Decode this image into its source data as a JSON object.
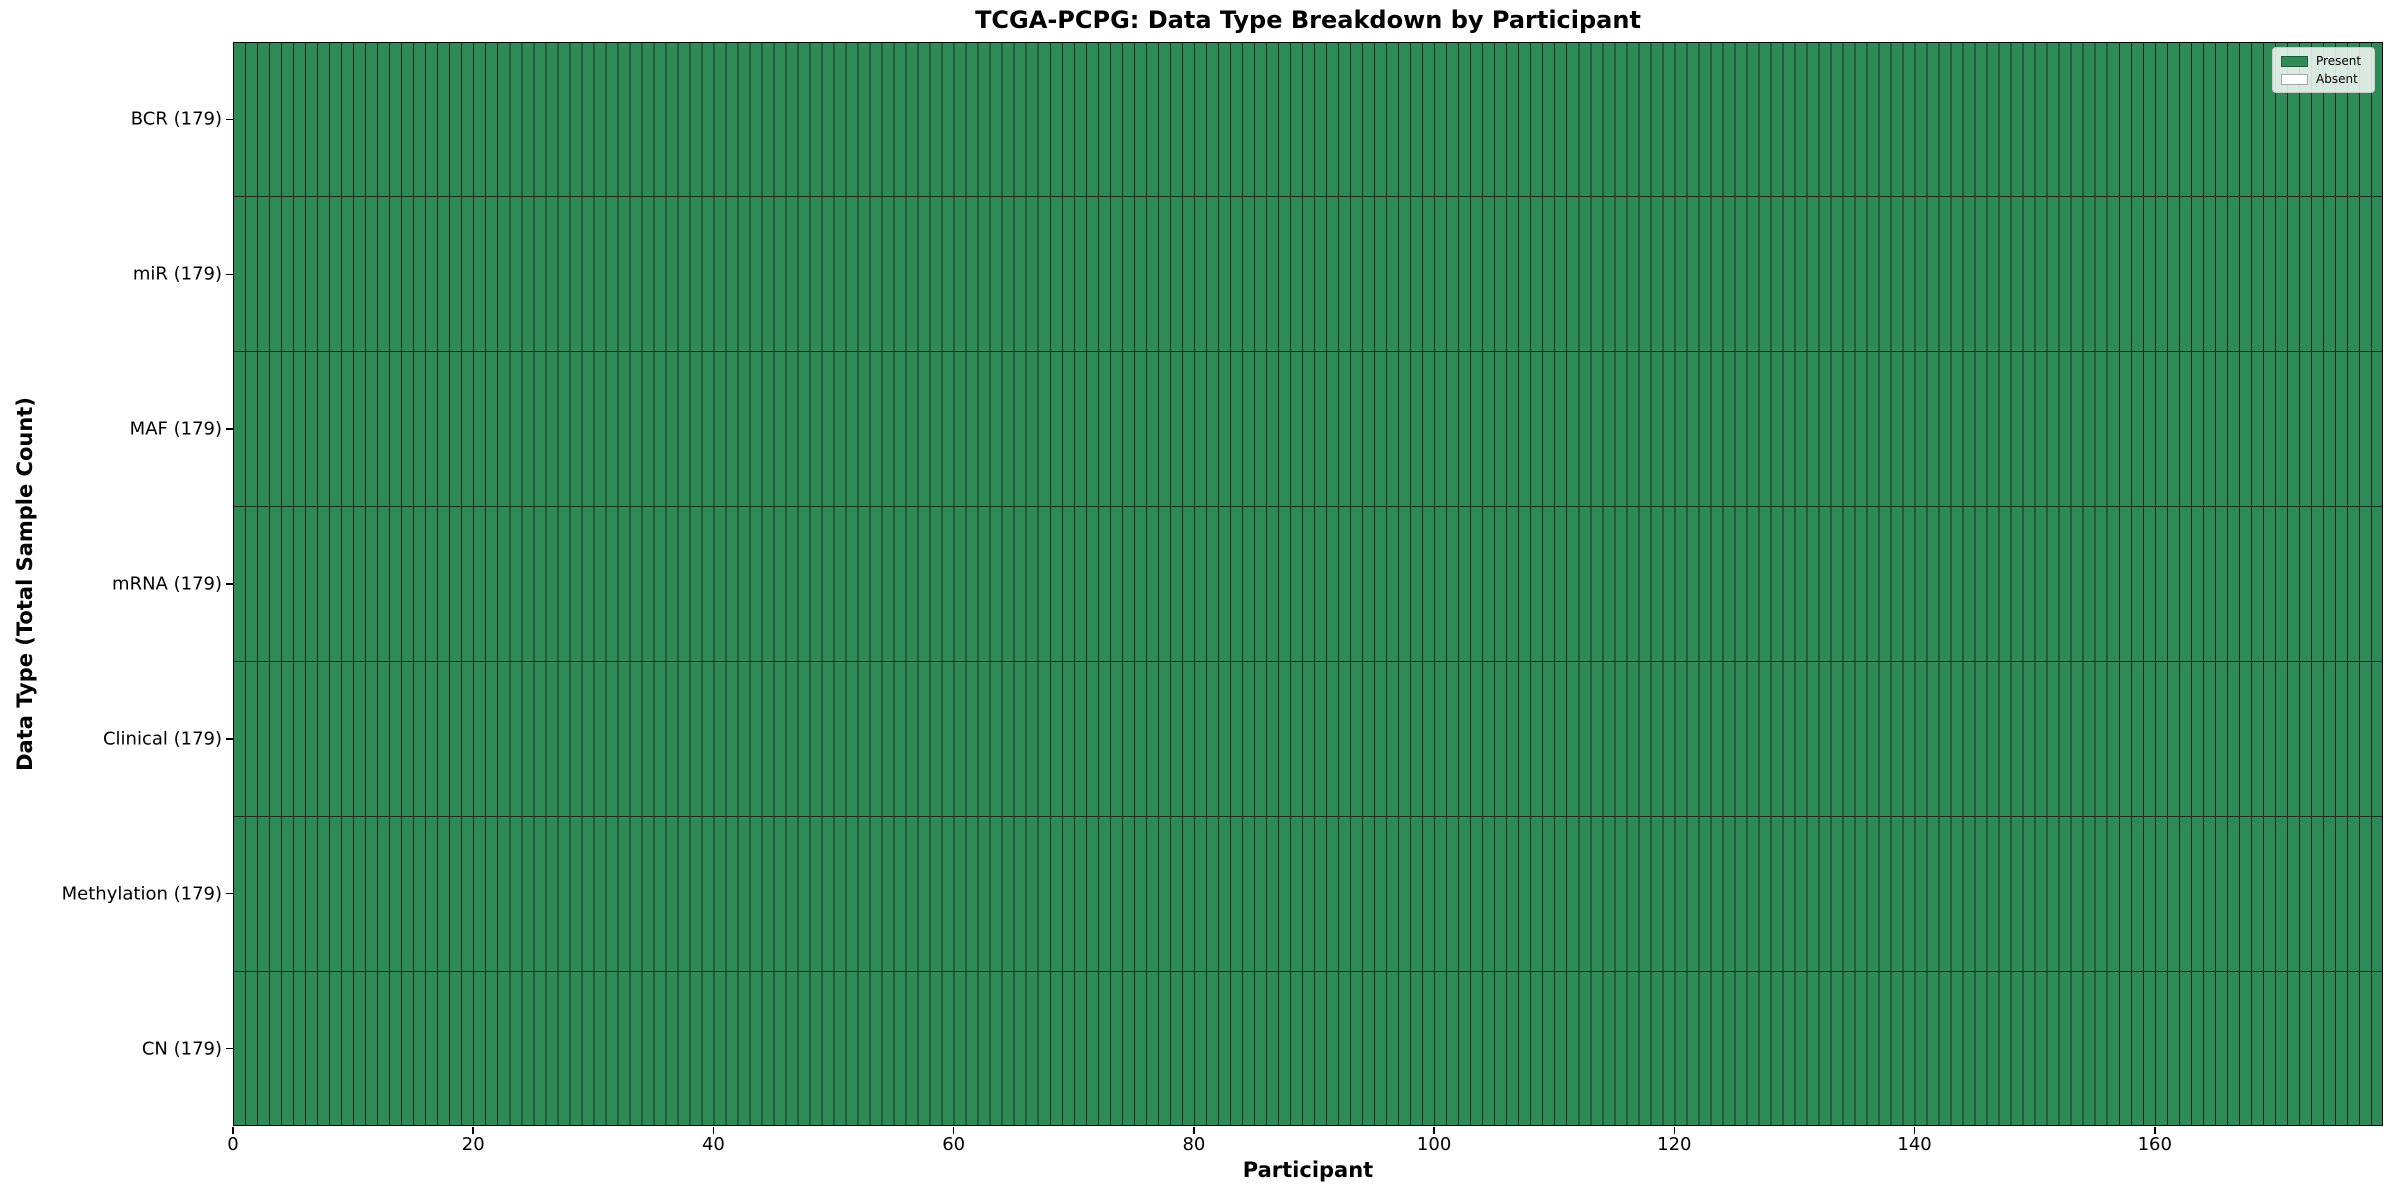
{
  "figure": {
    "title": "TCGA-PCPG: Data Type Breakdown by Participant",
    "xlabel": "Participant",
    "ylabel": "Data Type (Total Sample Count)"
  },
  "legend": {
    "items": [
      {
        "label": "Present",
        "color": "#2e8b57"
      },
      {
        "label": "Absent",
        "color": "#ffffff"
      }
    ]
  },
  "chart_data": {
    "type": "heatmap",
    "title": "TCGA-PCPG: Data Type Breakdown by Participant",
    "xlabel": "Participant",
    "ylabel": "Data Type (Total Sample Count)",
    "n_participants": 179,
    "x_range": [
      0,
      179
    ],
    "x_ticks": [
      0,
      20,
      40,
      60,
      80,
      100,
      120,
      140,
      160
    ],
    "legend_position": "upper right",
    "grid": "cell-borders",
    "rows": [
      {
        "label": "BCR (179)",
        "total": 179,
        "present_count": 179,
        "absent_count": 0
      },
      {
        "label": "miR (179)",
        "total": 179,
        "present_count": 179,
        "absent_count": 0
      },
      {
        "label": "MAF (179)",
        "total": 179,
        "present_count": 179,
        "absent_count": 0
      },
      {
        "label": "mRNA (179)",
        "total": 179,
        "present_count": 179,
        "absent_count": 0
      },
      {
        "label": "Clinical (179)",
        "total": 179,
        "present_count": 179,
        "absent_count": 0
      },
      {
        "label": "Methylation (179)",
        "total": 179,
        "present_count": 179,
        "absent_count": 0
      },
      {
        "label": "CN (179)",
        "total": 179,
        "present_count": 179,
        "absent_count": 0
      }
    ],
    "colors": {
      "present": "#2e8b57",
      "absent": "#ffffff",
      "cell_edge": "#1e2d23",
      "axis": "#000000"
    }
  }
}
